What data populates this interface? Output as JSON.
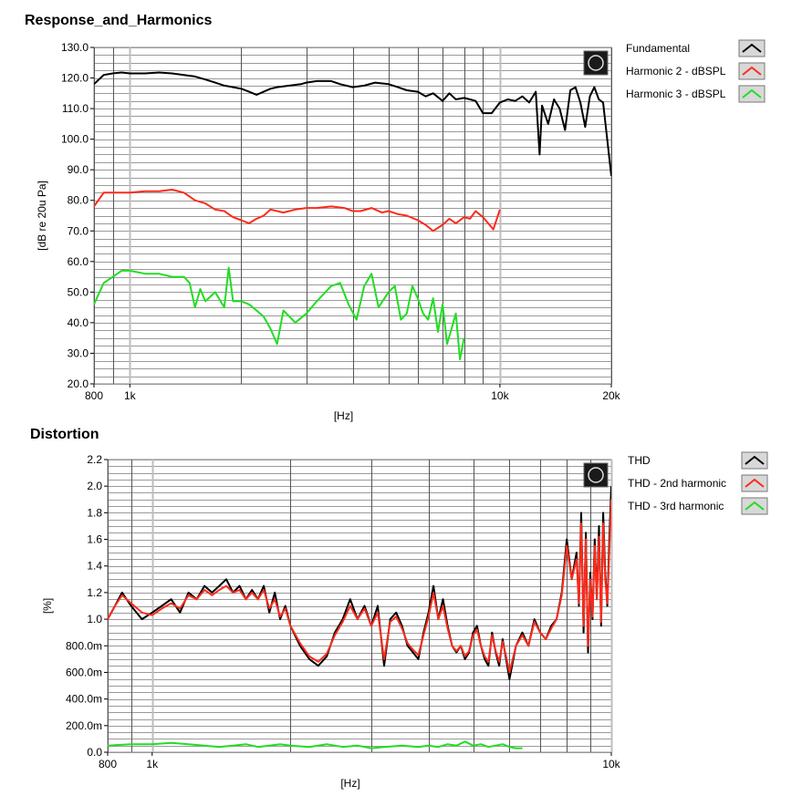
{
  "chart_data": [
    {
      "id": "response",
      "type": "line",
      "title": "Response_and_Harmonics",
      "xlabel": "[Hz]",
      "ylabel": "[dB re 20u Pa]",
      "xscale": "log",
      "xlim": [
        800,
        20000
      ],
      "ylim": [
        20,
        130
      ],
      "yticks": [
        "20.0",
        "30.0",
        "40.0",
        "50.0",
        "60.0",
        "70.0",
        "80.0",
        "90.0",
        "100.0",
        "110.0",
        "120.0",
        "130.0"
      ],
      "xtick_labels": [
        {
          "value": 800,
          "label": "800"
        },
        {
          "value": 1000,
          "label": "1k"
        },
        {
          "value": 10000,
          "label": "10k"
        },
        {
          "value": 20000,
          "label": "20k"
        }
      ],
      "grid": true,
      "legend": "right",
      "series": [
        {
          "name": "Fundamental",
          "color": "#000000",
          "x": [
            800,
            850,
            900,
            950,
            1000,
            1100,
            1200,
            1300,
            1400,
            1500,
            1600,
            1700,
            1800,
            1900,
            2000,
            2100,
            2200,
            2300,
            2400,
            2500,
            2700,
            2900,
            3000,
            3200,
            3500,
            3700,
            4000,
            4300,
            4600,
            5000,
            5300,
            5600,
            6000,
            6300,
            6600,
            7000,
            7300,
            7600,
            8000,
            8300,
            8600,
            9000,
            9500,
            10000,
            10500,
            11000,
            11500,
            12000,
            12500,
            12800,
            13000,
            13500,
            14000,
            14500,
            15000,
            15500,
            16000,
            16500,
            17000,
            17500,
            18000,
            18500,
            19000,
            19500,
            20000
          ],
          "y": [
            118,
            121,
            121.5,
            121.8,
            121.5,
            121.5,
            121.8,
            121.5,
            121,
            120.5,
            119.5,
            118.5,
            117.5,
            117,
            116.5,
            115.5,
            114.5,
            115.5,
            116.5,
            117,
            117.5,
            118,
            118.5,
            119,
            119,
            118,
            117,
            117.5,
            118.5,
            118,
            117,
            116,
            115.5,
            114,
            115,
            112.5,
            115,
            113,
            113.5,
            113,
            112.5,
            108.5,
            108.5,
            112,
            113,
            112.5,
            114,
            112,
            115.5,
            95,
            111,
            105,
            113,
            110,
            103,
            116,
            117,
            112,
            104,
            114,
            117,
            113,
            112,
            100,
            88
          ]
        },
        {
          "name": "Harmonic 2 - dBSPL",
          "color": "#ff2a1a",
          "x": [
            800,
            850,
            900,
            950,
            1000,
            1100,
            1200,
            1300,
            1400,
            1500,
            1600,
            1700,
            1800,
            1900,
            2000,
            2100,
            2200,
            2300,
            2400,
            2600,
            2800,
            3000,
            3200,
            3500,
            3800,
            4000,
            4200,
            4500,
            4800,
            5000,
            5300,
            5600,
            6000,
            6300,
            6600,
            7000,
            7300,
            7600,
            8000,
            8300,
            8600,
            9000,
            9300,
            9600,
            10000
          ],
          "y": [
            78,
            82.5,
            82.5,
            82.5,
            82.5,
            83,
            83,
            83.5,
            82.5,
            80,
            79,
            77,
            76.5,
            74.5,
            73.5,
            72.5,
            74,
            75,
            77,
            76,
            77,
            77.5,
            77.5,
            78,
            77.5,
            76.5,
            76.5,
            77.5,
            76,
            76.5,
            75.5,
            75,
            73.5,
            72,
            70,
            72,
            74,
            72.5,
            74.5,
            74,
            76.5,
            74.5,
            72.5,
            70.5,
            77
          ]
        },
        {
          "name": "Harmonic 3 - dBSPL",
          "color": "#22dd22",
          "x": [
            800,
            850,
            900,
            950,
            1000,
            1100,
            1200,
            1300,
            1400,
            1450,
            1500,
            1550,
            1600,
            1700,
            1800,
            1850,
            1900,
            2000,
            2100,
            2200,
            2300,
            2400,
            2500,
            2600,
            2800,
            3000,
            3200,
            3500,
            3700,
            3900,
            4100,
            4300,
            4500,
            4700,
            5000,
            5200,
            5400,
            5600,
            5800,
            6000,
            6200,
            6400,
            6600,
            6800,
            7000,
            7200,
            7400,
            7600,
            7800,
            8000
          ],
          "y": [
            46,
            53,
            55,
            57,
            57,
            56,
            56,
            55,
            55,
            53,
            45,
            51,
            47,
            50,
            45,
            58,
            47,
            47,
            46,
            44,
            42,
            38,
            33,
            44,
            40,
            43,
            47,
            52,
            53,
            46,
            41,
            52,
            56,
            45,
            50,
            52,
            41,
            43,
            52,
            48,
            43,
            41,
            48,
            37,
            46,
            33,
            38,
            43,
            28,
            35
          ]
        }
      ]
    },
    {
      "id": "distortion",
      "type": "line",
      "title": "Distortion",
      "xlabel": "[Hz]",
      "ylabel": "[%]",
      "xscale": "log",
      "xlim": [
        800,
        10000
      ],
      "ylim": [
        0,
        2.2
      ],
      "yticks": [
        {
          "value": 0,
          "label": "0.0"
        },
        {
          "value": 0.2,
          "label": "200.0m"
        },
        {
          "value": 0.4,
          "label": "400.0m"
        },
        {
          "value": 0.6,
          "label": "600.0m"
        },
        {
          "value": 0.8,
          "label": "800.0m"
        },
        {
          "value": 1.0,
          "label": "1.0"
        },
        {
          "value": 1.2,
          "label": "1.2"
        },
        {
          "value": 1.4,
          "label": "1.4"
        },
        {
          "value": 1.6,
          "label": "1.6"
        },
        {
          "value": 1.8,
          "label": "1.8"
        },
        {
          "value": 2.0,
          "label": "2.0"
        },
        {
          "value": 2.2,
          "label": "2.2"
        }
      ],
      "xtick_labels": [
        {
          "value": 800,
          "label": "800"
        },
        {
          "value": 1000,
          "label": "1k"
        },
        {
          "value": 10000,
          "label": "10k"
        }
      ],
      "grid": true,
      "legend": "right",
      "series": [
        {
          "name": "THD",
          "color": "#000000",
          "x": [
            800,
            830,
            860,
            900,
            950,
            1000,
            1050,
            1100,
            1150,
            1200,
            1250,
            1300,
            1350,
            1400,
            1450,
            1500,
            1550,
            1600,
            1650,
            1700,
            1750,
            1800,
            1850,
            1900,
            1950,
            2000,
            2100,
            2200,
            2300,
            2400,
            2500,
            2600,
            2700,
            2800,
            2900,
            3000,
            3100,
            3200,
            3300,
            3400,
            3500,
            3600,
            3700,
            3800,
            3900,
            4000,
            4100,
            4200,
            4300,
            4400,
            4500,
            4600,
            4700,
            4800,
            4900,
            5000,
            5100,
            5200,
            5300,
            5400,
            5500,
            5600,
            5700,
            5800,
            5900,
            6000,
            6200,
            6400,
            6600,
            6800,
            7000,
            7200,
            7400,
            7600,
            7800,
            8000,
            8200,
            8400,
            8500,
            8600,
            8700,
            8800,
            8900,
            9000,
            9100,
            9200,
            9300,
            9400,
            9500,
            9600,
            9700,
            9800,
            9900,
            10000
          ],
          "y": [
            1.0,
            1.1,
            1.2,
            1.1,
            1.0,
            1.05,
            1.1,
            1.15,
            1.05,
            1.2,
            1.15,
            1.25,
            1.2,
            1.25,
            1.3,
            1.2,
            1.25,
            1.15,
            1.22,
            1.15,
            1.25,
            1.05,
            1.2,
            1.0,
            1.1,
            0.95,
            0.8,
            0.7,
            0.65,
            0.72,
            0.9,
            1.0,
            1.15,
            1.0,
            1.1,
            0.95,
            1.1,
            0.65,
            1.0,
            1.05,
            0.95,
            0.8,
            0.75,
            0.7,
            0.9,
            1.05,
            1.25,
            1.0,
            1.15,
            0.95,
            0.8,
            0.75,
            0.8,
            0.7,
            0.75,
            0.9,
            0.95,
            0.8,
            0.7,
            0.65,
            0.9,
            0.75,
            0.65,
            0.85,
            0.7,
            0.55,
            0.8,
            0.9,
            0.8,
            1.0,
            0.9,
            0.85,
            0.95,
            1.0,
            1.2,
            1.6,
            1.3,
            1.5,
            1.1,
            1.8,
            0.9,
            1.65,
            0.75,
            1.35,
            1.0,
            1.6,
            1.15,
            1.7,
            0.95,
            1.8,
            1.35,
            1.1,
            1.6,
            2.0
          ]
        },
        {
          "name": "THD - 2nd harmonic",
          "color": "#ff2a1a",
          "x": [
            800,
            830,
            860,
            900,
            950,
            1000,
            1050,
            1100,
            1150,
            1200,
            1250,
            1300,
            1350,
            1400,
            1450,
            1500,
            1550,
            1600,
            1650,
            1700,
            1750,
            1800,
            1850,
            1900,
            1950,
            2000,
            2100,
            2200,
            2300,
            2400,
            2500,
            2600,
            2700,
            2800,
            2900,
            3000,
            3100,
            3200,
            3300,
            3400,
            3500,
            3600,
            3700,
            3800,
            3900,
            4000,
            4100,
            4200,
            4300,
            4400,
            4500,
            4600,
            4700,
            4800,
            4900,
            5000,
            5100,
            5200,
            5300,
            5400,
            5500,
            5600,
            5700,
            5800,
            5900,
            6000,
            6200,
            6400,
            6600,
            6800,
            7000,
            7200,
            7400,
            7600,
            7800,
            8000,
            8200,
            8400,
            8500,
            8600,
            8700,
            8800,
            8900,
            9000,
            9100,
            9200,
            9300,
            9400,
            9500,
            9600,
            9700,
            9800,
            9900,
            10000
          ],
          "y": [
            1.0,
            1.1,
            1.18,
            1.12,
            1.05,
            1.03,
            1.08,
            1.12,
            1.08,
            1.18,
            1.15,
            1.22,
            1.18,
            1.22,
            1.25,
            1.2,
            1.22,
            1.15,
            1.2,
            1.15,
            1.22,
            1.08,
            1.15,
            1.02,
            1.08,
            0.95,
            0.82,
            0.72,
            0.68,
            0.74,
            0.88,
            0.98,
            1.1,
            1.0,
            1.08,
            0.95,
            1.05,
            0.7,
            0.98,
            1.02,
            0.93,
            0.82,
            0.77,
            0.73,
            0.88,
            1.02,
            1.2,
            1.0,
            1.1,
            0.93,
            0.8,
            0.76,
            0.8,
            0.72,
            0.76,
            0.88,
            0.92,
            0.8,
            0.72,
            0.68,
            0.88,
            0.76,
            0.68,
            0.83,
            0.72,
            0.6,
            0.8,
            0.88,
            0.8,
            0.98,
            0.9,
            0.85,
            0.93,
            1.0,
            1.18,
            1.55,
            1.3,
            1.45,
            1.12,
            1.72,
            0.95,
            1.6,
            0.8,
            1.3,
            1.02,
            1.55,
            1.15,
            1.62,
            0.98,
            1.72,
            1.3,
            1.12,
            1.5,
            1.9
          ]
        },
        {
          "name": "THD - 3rd harmonic",
          "color": "#22dd22",
          "x": [
            800,
            900,
            1000,
            1100,
            1200,
            1300,
            1400,
            1500,
            1600,
            1700,
            1800,
            1900,
            2000,
            2200,
            2400,
            2600,
            2800,
            3000,
            3200,
            3500,
            3800,
            4000,
            4200,
            4400,
            4600,
            4800,
            5000,
            5200,
            5400,
            5600,
            5800,
            6000,
            6200,
            6400
          ],
          "y": [
            0.05,
            0.06,
            0.06,
            0.07,
            0.06,
            0.05,
            0.04,
            0.05,
            0.06,
            0.04,
            0.05,
            0.06,
            0.05,
            0.04,
            0.06,
            0.04,
            0.05,
            0.03,
            0.04,
            0.05,
            0.04,
            0.05,
            0.04,
            0.06,
            0.05,
            0.08,
            0.05,
            0.06,
            0.04,
            0.05,
            0.06,
            0.04,
            0.03,
            0.03
          ]
        }
      ]
    }
  ]
}
